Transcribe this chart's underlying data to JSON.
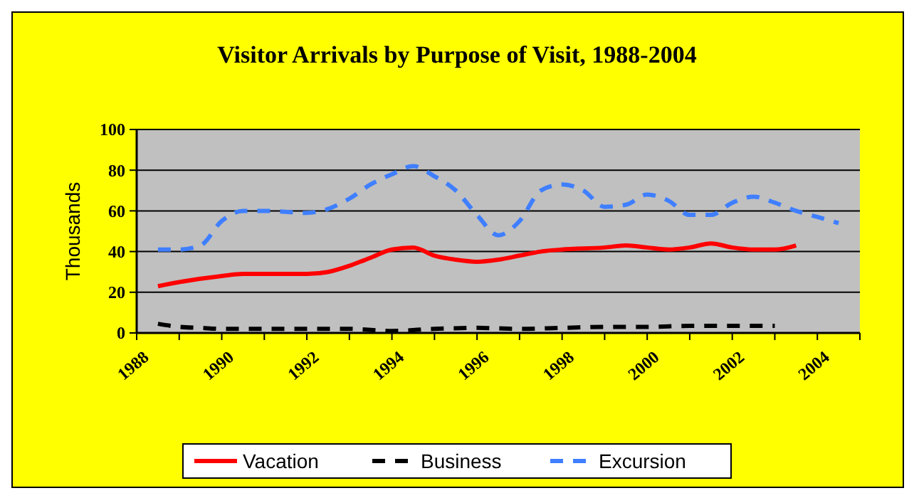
{
  "chart_data": {
    "type": "line",
    "title": "Visitor Arrivals by Purpose of Visit, 1988-2004",
    "ylabel": "Thousands",
    "xlim": [
      1988,
      2005
    ],
    "xticks": [
      1988,
      {
        "value": 1989,
        "label": null
      },
      1990,
      {
        "value": 1991,
        "label": null
      },
      1992,
      {
        "value": 1993,
        "label": null
      },
      1994,
      {
        "value": 1995,
        "label": null
      },
      1996,
      {
        "value": 1997,
        "label": null
      },
      1998,
      {
        "value": 1999,
        "label": null
      },
      2000,
      {
        "value": 2001,
        "label": null
      },
      2002,
      {
        "value": 2003,
        "label": null
      },
      2004,
      {
        "value": 2005,
        "label": null
      }
    ],
    "ylim": [
      0,
      100
    ],
    "yticks": [
      0,
      20,
      40,
      60,
      80,
      100
    ],
    "grid": "y",
    "legend": "bottom",
    "marker": "none",
    "series": [
      {
        "name": "Vacation",
        "color": "#ff0000",
        "line_style": "solid",
        "x": [
          1988.5,
          1989,
          1990,
          1990.5,
          1992,
          1992.5,
          1993,
          1993.5,
          1994,
          1994.5,
          1995,
          1995.5,
          1996,
          1996.5,
          1997,
          1997.5,
          1998,
          1999,
          1999.5,
          2000,
          2000.5,
          2001,
          2001.5,
          2002,
          2002.5,
          2003,
          2003.5
        ],
        "values": [
          23,
          25,
          28,
          29,
          29,
          30,
          33,
          37,
          41,
          42,
          38,
          36,
          35,
          36,
          38,
          40,
          41,
          42,
          43,
          42,
          41,
          42,
          44,
          42,
          41,
          41,
          43
        ]
      },
      {
        "name": "Business",
        "color": "#000000",
        "line_style": "dashed",
        "x": [
          1988.5,
          1989,
          1989.5,
          1990,
          1991,
          1992,
          1993,
          1994,
          1995,
          1996,
          1997,
          1998,
          1999,
          2000,
          2001,
          2002,
          2003
        ],
        "values": [
          4.5,
          3,
          2.5,
          2,
          2,
          2,
          2,
          1,
          2,
          2.5,
          2,
          2.5,
          3,
          3,
          3.5,
          3.5,
          3.5
        ]
      },
      {
        "name": "Excursion",
        "color": "#3f7fff",
        "line_style": "dashed",
        "x": [
          1988.5,
          1989,
          1989.5,
          1990,
          1990.5,
          1991,
          1992,
          1992.5,
          1993,
          1993.5,
          1994,
          1994.5,
          1995,
          1995.5,
          1996,
          1996.5,
          1997,
          1997.5,
          1998,
          1998.5,
          1999,
          1999.5,
          2000,
          2000.5,
          2001,
          2001.5,
          2002,
          2002.5,
          2003,
          2003.5,
          2004,
          2004.5
        ],
        "values": [
          41,
          41,
          43,
          55,
          60,
          60,
          59,
          61,
          66,
          73,
          78,
          82,
          77,
          70,
          58,
          48,
          55,
          70,
          73,
          70,
          62,
          63,
          68,
          65,
          58,
          58,
          64,
          67,
          64,
          60,
          57,
          54
        ]
      }
    ]
  }
}
